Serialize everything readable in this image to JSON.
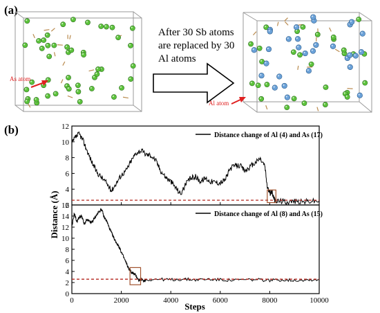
{
  "panel_a": {
    "label": "(a)",
    "arrow_text": [
      "After 30 Sb atoms",
      "are replaced  by 30",
      "Al atoms"
    ],
    "left_atom_label": "As atom",
    "right_atom_label": "Al atom",
    "colors": {
      "as_atom": "#5cc33b",
      "al_atom": "#6aa1d8",
      "bond": "#b98a4d",
      "marker": "#e02020"
    }
  },
  "panel_b": {
    "label": "(b)"
  },
  "chart_data": [
    {
      "type": "line",
      "title": "",
      "legend": "Distance change of Al (4) and As (17)",
      "legend_position": "top-right",
      "xlabel": "Steps",
      "ylabel": "Distance (Å)",
      "xlim": [
        0,
        10000
      ],
      "ylim": [
        2,
        12
      ],
      "yticks": [
        "2",
        "4",
        "6",
        "8",
        "10",
        "12"
      ],
      "reference_line": 2.6,
      "highlight_box": {
        "x": [
          7900,
          8250
        ],
        "y": [
          2.3,
          3.9
        ]
      },
      "series": [
        {
          "name": "Distance change of Al (4) and As (17)",
          "x": [
            0,
            150,
            300,
            450,
            600,
            800,
            1000,
            1200,
            1400,
            1600,
            1800,
            2000,
            2200,
            2400,
            2600,
            2800,
            3000,
            3200,
            3400,
            3600,
            3800,
            4000,
            4200,
            4400,
            4600,
            4800,
            5000,
            5200,
            5400,
            5600,
            5800,
            6000,
            6200,
            6400,
            6600,
            6800,
            7000,
            7200,
            7400,
            7600,
            7800,
            7900,
            8000,
            8100,
            8200,
            8300,
            8500,
            8700,
            9000,
            9300,
            9600,
            10000
          ],
          "y": [
            9.8,
            10.6,
            11.0,
            10.2,
            9.0,
            7.5,
            6.2,
            5.5,
            4.8,
            3.8,
            4.8,
            5.8,
            6.4,
            7.6,
            8.6,
            8.9,
            8.4,
            8.3,
            7.6,
            6.3,
            5.5,
            5.0,
            4.2,
            3.4,
            4.6,
            5.4,
            5.6,
            5.0,
            5.4,
            5.0,
            4.9,
            4.8,
            5.2,
            6.6,
            7.0,
            7.0,
            6.3,
            6.8,
            7.3,
            7.9,
            7.0,
            4.3,
            3.5,
            3.6,
            2.6,
            2.5,
            2.5,
            2.4,
            2.5,
            2.4,
            2.5,
            2.5
          ]
        }
      ]
    },
    {
      "type": "line",
      "title": "",
      "legend": "Distance change of Al (8) and As (15)",
      "legend_position": "top-right",
      "xlabel": "Steps",
      "ylabel": "Distance (Å)",
      "xlim": [
        0,
        10000
      ],
      "ylim": [
        0,
        16
      ],
      "xticks": [
        "0",
        "2000",
        "4000",
        "6000",
        "8000",
        "10000"
      ],
      "yticks": [
        "0",
        "2",
        "4",
        "6",
        "8",
        "10",
        "12",
        "14",
        "16"
      ],
      "reference_line": 2.6,
      "highlight_box": {
        "x": [
          2350,
          2780
        ],
        "y": [
          1.6,
          4.7
        ]
      },
      "series": [
        {
          "name": "Distance change of Al (8) and As (15)",
          "x": [
            0,
            100,
            200,
            300,
            400,
            500,
            600,
            700,
            800,
            900,
            1000,
            1100,
            1200,
            1300,
            1400,
            1500,
            1600,
            1700,
            1800,
            1900,
            2000,
            2100,
            2200,
            2300,
            2400,
            2500,
            2600,
            2700,
            2800,
            2900,
            3000,
            3500,
            4000,
            4500,
            5000,
            5500,
            6000,
            6500,
            7000,
            7500,
            8000,
            8500,
            9000,
            9500,
            10000
          ],
          "y": [
            12.0,
            14.5,
            13.0,
            13.8,
            14.0,
            12.5,
            13.3,
            13.0,
            12.8,
            13.5,
            14.2,
            14.8,
            15.3,
            13.8,
            13.2,
            12.0,
            11.0,
            10.0,
            9.2,
            8.5,
            7.5,
            6.5,
            5.5,
            4.5,
            3.9,
            3.6,
            3.2,
            2.4,
            2.6,
            2.3,
            2.5,
            2.6,
            2.5,
            2.6,
            2.5,
            2.6,
            2.5,
            2.4,
            2.5,
            2.5,
            2.4,
            2.5,
            2.4,
            2.5,
            2.5
          ]
        }
      ]
    }
  ]
}
